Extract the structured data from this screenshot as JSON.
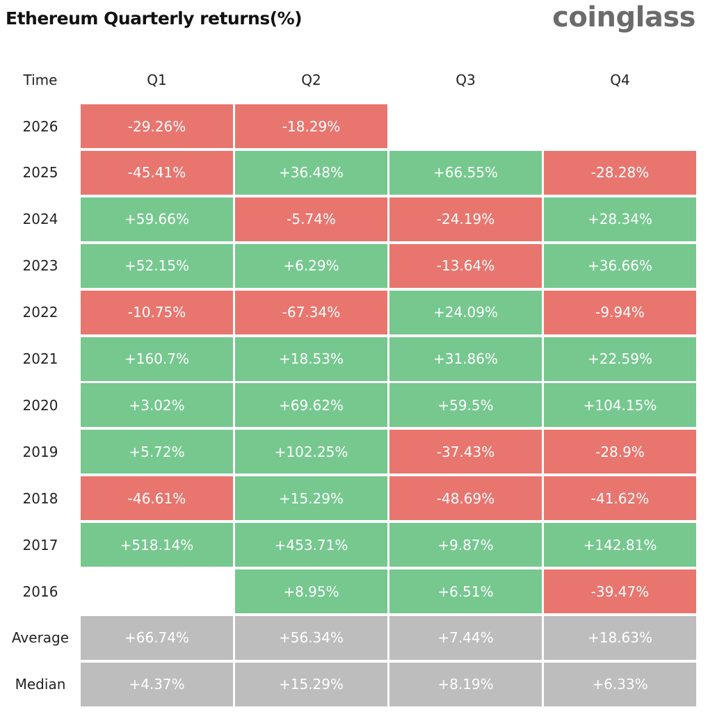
{
  "header": {
    "title": "Ethereum Quarterly returns(%)",
    "brand": "coinglass"
  },
  "table": {
    "columns": [
      "Time",
      "Q1",
      "Q2",
      "Q3",
      "Q4"
    ],
    "rows": [
      [
        "2026",
        "-29.26%",
        "-18.29%",
        null,
        null
      ],
      [
        "2025",
        "-45.41%",
        "+36.48%",
        "+66.55%",
        "-28.28%"
      ],
      [
        "2024",
        "+59.66%",
        "-5.74%",
        "-24.19%",
        "+28.34%"
      ],
      [
        "2023",
        "+52.15%",
        "+6.29%",
        "-13.64%",
        "+36.66%"
      ],
      [
        "2022",
        "-10.75%",
        "-67.34%",
        "+24.09%",
        "-9.94%"
      ],
      [
        "2021",
        "+160.7%",
        "+18.53%",
        "+31.86%",
        "+22.59%"
      ],
      [
        "2020",
        "+3.02%",
        "+69.62%",
        "+59.5%",
        "+104.15%"
      ],
      [
        "2019",
        "+5.72%",
        "+102.25%",
        "-37.43%",
        "-28.9%"
      ],
      [
        "2018",
        "-46.61%",
        "+15.29%",
        "-48.69%",
        "-41.62%"
      ],
      [
        "2017",
        "+518.14%",
        "+453.71%",
        "+9.87%",
        "+142.81%"
      ],
      [
        "2016",
        null,
        "+8.95%",
        "+6.51%",
        "-39.47%"
      ]
    ],
    "summary": [
      [
        "Average",
        "+66.74%",
        "+56.34%",
        "+7.44%",
        "+18.63%"
      ],
      [
        "Median",
        "+4.37%",
        "+15.29%",
        "+8.19%",
        "+6.33%"
      ]
    ]
  }
}
